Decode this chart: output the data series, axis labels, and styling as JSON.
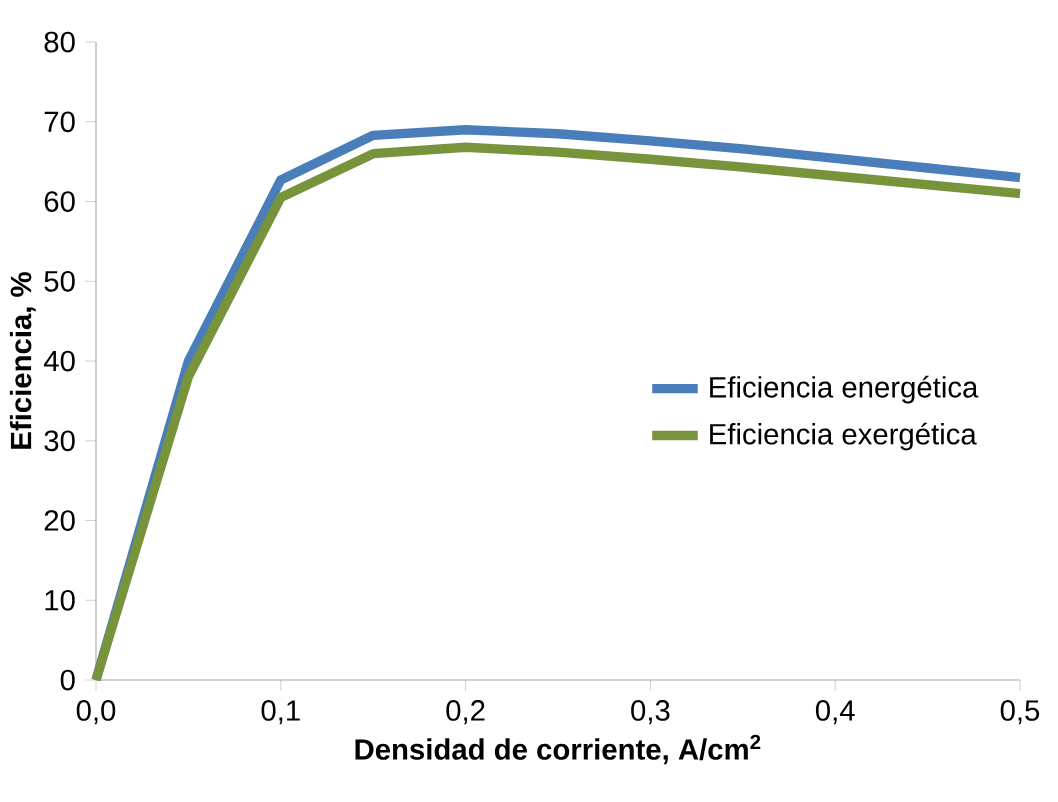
{
  "chart_data": {
    "type": "line",
    "xlabel": "Densidad de corriente, A/cm$^{2}$",
    "ylabel": "Eficiencia, %",
    "x": [
      0,
      0.05,
      0.1,
      0.15,
      0.2,
      0.25,
      0.3,
      0.35,
      0.4,
      0.45,
      0.5
    ],
    "series": [
      {
        "name": "Eficiencia energética",
        "color": "#4a7ebb",
        "values": [
          0,
          40,
          62.7,
          68.3,
          69,
          68.5,
          67.6,
          66.6,
          65.4,
          64.2,
          63
        ]
      },
      {
        "name": "Eficiencia exergética",
        "color": "#77933c",
        "values": [
          0,
          38,
          60.5,
          66,
          66.8,
          66.2,
          65.3,
          64.3,
          63.2,
          62.1,
          61
        ]
      }
    ],
    "xlim": [
      0,
      0.5
    ],
    "ylim": [
      0,
      80
    ],
    "xticks": [
      {
        "value": 0,
        "label": "0,0"
      },
      {
        "value": 0.1,
        "label": "0,1"
      },
      {
        "value": 0.2,
        "label": "0,2"
      },
      {
        "value": 0.3,
        "label": "0,3"
      },
      {
        "value": 0.4,
        "label": "0,4"
      },
      {
        "value": 0.5,
        "label": "0,5"
      }
    ],
    "yticks": [
      0,
      10,
      20,
      30,
      40,
      50,
      60,
      70,
      80
    ],
    "legend": "right",
    "grid": false,
    "marker": "none",
    "line_style": "solid"
  }
}
